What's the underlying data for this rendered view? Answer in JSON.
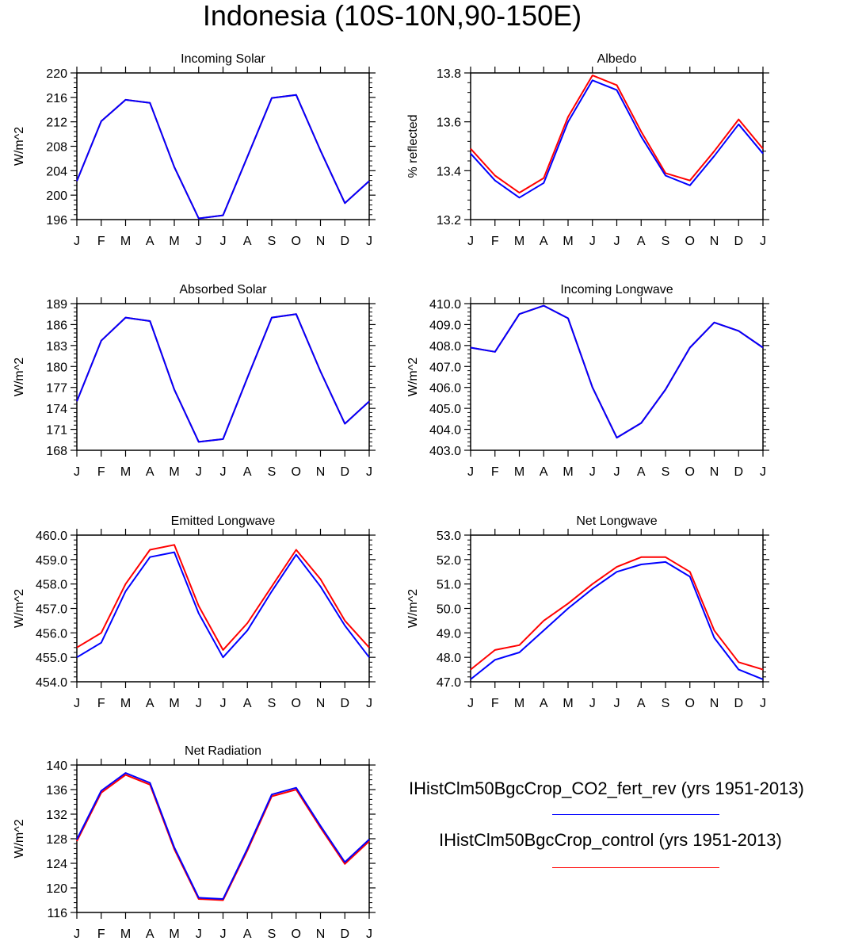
{
  "title": "Indonesia (10S-10N,90-150E)",
  "legend": [
    {
      "label": "IHistClm50BgcCrop_CO2_fert_rev (yrs 1951-2013)",
      "color": "#0000ff"
    },
    {
      "label": "IHistClm50BgcCrop_control (yrs 1951-2013)",
      "color": "#ff0000"
    }
  ],
  "chart_data": [
    {
      "type": "line",
      "title": "Incoming Solar",
      "ylabel": "W/m^2",
      "categories": [
        "J",
        "F",
        "M",
        "A",
        "M",
        "J",
        "J",
        "A",
        "S",
        "O",
        "N",
        "D",
        "J"
      ],
      "ylim": [
        196,
        220
      ],
      "yticks": [
        "196",
        "200",
        "204",
        "208",
        "212",
        "216",
        "220"
      ],
      "series": [
        {
          "name": "IHistClm50BgcCrop_control (yrs 1951-2013)",
          "color": "#ff0000",
          "values": [
            202.3,
            212.1,
            215.6,
            215.1,
            204.6,
            196.2,
            196.7,
            206.3,
            215.9,
            216.4,
            207.3,
            198.7,
            202.3
          ]
        },
        {
          "name": "IHistClm50BgcCrop_CO2_fert_rev (yrs 1951-2013)",
          "color": "#0000ff",
          "values": [
            202.3,
            212.1,
            215.6,
            215.1,
            204.6,
            196.2,
            196.7,
            206.3,
            215.9,
            216.4,
            207.3,
            198.7,
            202.3
          ]
        }
      ]
    },
    {
      "type": "line",
      "title": "Albedo",
      "ylabel": "% reflected",
      "categories": [
        "J",
        "F",
        "M",
        "A",
        "M",
        "J",
        "J",
        "A",
        "S",
        "O",
        "N",
        "D",
        "J"
      ],
      "ylim": [
        13.2,
        13.8
      ],
      "yticks": [
        "13.2",
        "13.4",
        "13.6",
        "13.8"
      ],
      "series": [
        {
          "name": "IHistClm50BgcCrop_control (yrs 1951-2013)",
          "color": "#ff0000",
          "values": [
            13.49,
            13.38,
            13.31,
            13.37,
            13.62,
            13.79,
            13.75,
            13.56,
            13.39,
            13.36,
            13.48,
            13.61,
            13.49
          ]
        },
        {
          "name": "IHistClm50BgcCrop_CO2_fert_rev (yrs 1951-2013)",
          "color": "#0000ff",
          "values": [
            13.47,
            13.36,
            13.29,
            13.35,
            13.6,
            13.77,
            13.73,
            13.54,
            13.38,
            13.34,
            13.46,
            13.59,
            13.47
          ]
        }
      ]
    },
    {
      "type": "line",
      "title": "Absorbed Solar",
      "ylabel": "W/m^2",
      "categories": [
        "J",
        "F",
        "M",
        "A",
        "M",
        "J",
        "J",
        "A",
        "S",
        "O",
        "N",
        "D",
        "J"
      ],
      "ylim": [
        168,
        189
      ],
      "yticks": [
        "168",
        "171",
        "174",
        "177",
        "180",
        "183",
        "186",
        "189"
      ],
      "series": [
        {
          "name": "IHistClm50BgcCrop_control (yrs 1951-2013)",
          "color": "#ff0000",
          "values": [
            175.0,
            183.7,
            187.0,
            186.5,
            176.7,
            169.2,
            169.6,
            178.4,
            187.0,
            187.5,
            179.3,
            171.8,
            175.0
          ]
        },
        {
          "name": "IHistClm50BgcCrop_CO2_fert_rev (yrs 1951-2013)",
          "color": "#0000ff",
          "values": [
            175.0,
            183.7,
            187.0,
            186.5,
            176.7,
            169.2,
            169.6,
            178.4,
            187.0,
            187.5,
            179.3,
            171.8,
            175.0
          ]
        }
      ]
    },
    {
      "type": "line",
      "title": "Incoming Longwave",
      "ylabel": "W/m^2",
      "categories": [
        "J",
        "F",
        "M",
        "A",
        "M",
        "J",
        "J",
        "A",
        "S",
        "O",
        "N",
        "D",
        "J"
      ],
      "ylim": [
        403.0,
        410.0
      ],
      "yticks": [
        "403.0",
        "404.0",
        "405.0",
        "406.0",
        "407.0",
        "408.0",
        "409.0",
        "410.0"
      ],
      "series": [
        {
          "name": "IHistClm50BgcCrop_control (yrs 1951-2013)",
          "color": "#ff0000",
          "values": [
            407.9,
            407.7,
            409.5,
            409.9,
            409.3,
            406.0,
            403.6,
            404.3,
            405.9,
            407.9,
            409.1,
            408.7,
            407.9
          ]
        },
        {
          "name": "IHistClm50BgcCrop_CO2_fert_rev (yrs 1951-2013)",
          "color": "#0000ff",
          "values": [
            407.9,
            407.7,
            409.5,
            409.9,
            409.3,
            406.0,
            403.6,
            404.3,
            405.9,
            407.9,
            409.1,
            408.7,
            407.9
          ]
        }
      ]
    },
    {
      "type": "line",
      "title": "Emitted Longwave",
      "ylabel": "W/m^2",
      "categories": [
        "J",
        "F",
        "M",
        "A",
        "M",
        "J",
        "J",
        "A",
        "S",
        "O",
        "N",
        "D",
        "J"
      ],
      "ylim": [
        454.0,
        460.0
      ],
      "yticks": [
        "454.0",
        "455.0",
        "456.0",
        "457.0",
        "458.0",
        "459.0",
        "460.0"
      ],
      "series": [
        {
          "name": "IHistClm50BgcCrop_control (yrs 1951-2013)",
          "color": "#ff0000",
          "values": [
            455.4,
            456.0,
            458.0,
            459.4,
            459.6,
            457.1,
            455.3,
            456.4,
            457.9,
            459.4,
            458.2,
            456.5,
            455.4
          ]
        },
        {
          "name": "IHistClm50BgcCrop_CO2_fert_rev (yrs 1951-2013)",
          "color": "#0000ff",
          "values": [
            455.0,
            455.6,
            457.7,
            459.1,
            459.3,
            456.8,
            455.0,
            456.1,
            457.7,
            459.2,
            457.9,
            456.3,
            455.0
          ]
        }
      ]
    },
    {
      "type": "line",
      "title": "Net Longwave",
      "ylabel": "W/m^2",
      "categories": [
        "J",
        "F",
        "M",
        "A",
        "M",
        "J",
        "J",
        "A",
        "S",
        "O",
        "N",
        "D",
        "J"
      ],
      "ylim": [
        47.0,
        53.0
      ],
      "yticks": [
        "47.0",
        "48.0",
        "49.0",
        "50.0",
        "51.0",
        "52.0",
        "53.0"
      ],
      "series": [
        {
          "name": "IHistClm50BgcCrop_control (yrs 1951-2013)",
          "color": "#ff0000",
          "values": [
            47.5,
            48.3,
            48.5,
            49.5,
            50.2,
            51.0,
            51.7,
            52.1,
            52.1,
            51.5,
            49.1,
            47.8,
            47.5
          ]
        },
        {
          "name": "IHistClm50BgcCrop_CO2_fert_rev (yrs 1951-2013)",
          "color": "#0000ff",
          "values": [
            47.1,
            47.9,
            48.2,
            49.1,
            50.0,
            50.8,
            51.5,
            51.8,
            51.9,
            51.3,
            48.8,
            47.5,
            47.1
          ]
        }
      ]
    },
    {
      "type": "line",
      "title": "Net Radiation",
      "ylabel": "W/m^2",
      "categories": [
        "J",
        "F",
        "M",
        "A",
        "M",
        "J",
        "J",
        "A",
        "S",
        "O",
        "N",
        "D",
        "J"
      ],
      "ylim": [
        116,
        140
      ],
      "yticks": [
        "116",
        "120",
        "124",
        "128",
        "132",
        "136",
        "140"
      ],
      "series": [
        {
          "name": "IHistClm50BgcCrop_control (yrs 1951-2013)",
          "color": "#ff0000",
          "values": [
            127.6,
            135.5,
            138.4,
            136.8,
            126.3,
            118.2,
            118.0,
            126.1,
            134.9,
            136.0,
            129.8,
            123.9,
            127.6
          ]
        },
        {
          "name": "IHistClm50BgcCrop_CO2_fert_rev (yrs 1951-2013)",
          "color": "#0000ff",
          "values": [
            127.9,
            135.8,
            138.7,
            137.1,
            126.6,
            118.4,
            118.2,
            126.4,
            135.2,
            136.3,
            130.1,
            124.2,
            127.9
          ]
        }
      ]
    }
  ]
}
